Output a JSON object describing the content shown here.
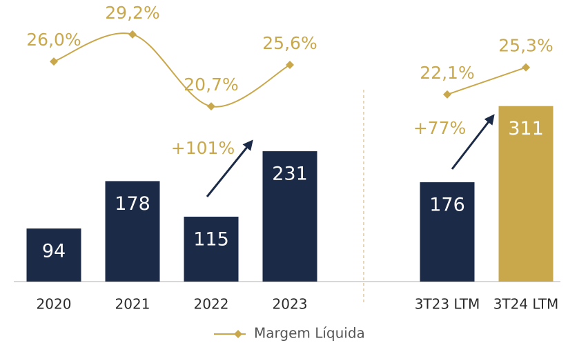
{
  "chart_data": {
    "type": "bar-line",
    "categories": [
      "2020",
      "2021",
      "2022",
      "2023",
      null,
      "3T23 LTM",
      "3T24 LTM"
    ],
    "bars": {
      "values": [
        94,
        178,
        115,
        231,
        null,
        176,
        311
      ],
      "colors": [
        "#1b2a47",
        "#1b2a47",
        "#1b2a47",
        "#1b2a47",
        null,
        "#1b2a47",
        "#c9a84c"
      ]
    },
    "line": {
      "name": "Margem Líquida",
      "color": "#c9a84c",
      "axis": "y2",
      "smooth": true,
      "values": [
        26.0,
        29.2,
        20.7,
        25.6,
        null,
        22.1,
        25.3
      ],
      "value_labels": [
        "26,0%",
        "29,2%",
        "20,7%",
        "25,6%",
        null,
        "22,1%",
        "25,3%"
      ]
    },
    "annotations": [
      "+101%",
      "+77%"
    ],
    "ylim": [
      0,
      450
    ],
    "y2lim": [
      0,
      30
    ],
    "legend": "bottom"
  }
}
